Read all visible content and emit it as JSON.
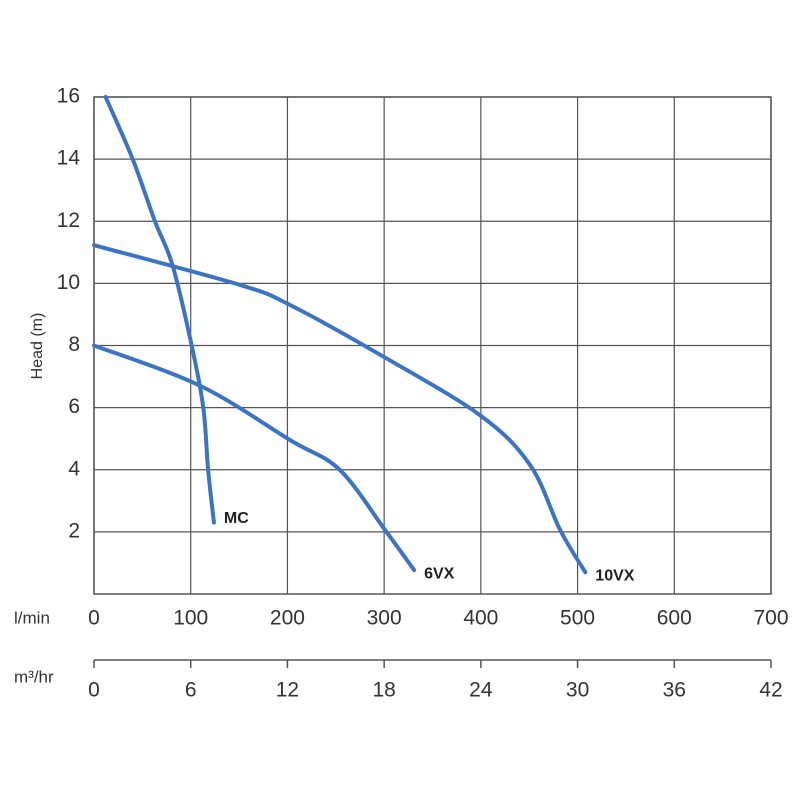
{
  "chart_data": {
    "type": "line",
    "ylabel": "Head (m)",
    "xlabel": "l/min",
    "x2label": "m³/hr",
    "xlim": [
      0,
      700
    ],
    "xticks": [
      0,
      100,
      200,
      300,
      400,
      500,
      600,
      700
    ],
    "x2lim": [
      0,
      42
    ],
    "x2ticks": [
      0,
      6,
      12,
      18,
      24,
      30,
      36,
      42
    ],
    "ylim": [
      0,
      16
    ],
    "yticks": [
      2,
      4,
      6,
      8,
      10,
      12,
      14,
      16
    ],
    "grid": true,
    "series": [
      {
        "name": "MC",
        "color": "#3b74c2",
        "x": [
          12,
          40,
          63,
          81,
          101,
          113,
          118,
          124
        ],
        "y": [
          16,
          14,
          12,
          10.6,
          8,
          6,
          4,
          2.3
        ]
      },
      {
        "name": "6VX",
        "color": "#3b74c2",
        "x": [
          0,
          110,
          203,
          254,
          301,
          331
        ],
        "y": [
          8.0,
          6.7,
          4.95,
          4.0,
          2.06,
          0.77
        ]
      },
      {
        "name": "10VX",
        "color": "#3b74c2",
        "x": [
          0,
          151,
          203,
          296,
          399,
          451,
          482,
          508
        ],
        "y": [
          11.23,
          9.95,
          9.3,
          7.7,
          5.76,
          4.15,
          2.06,
          0.7
        ]
      }
    ]
  }
}
